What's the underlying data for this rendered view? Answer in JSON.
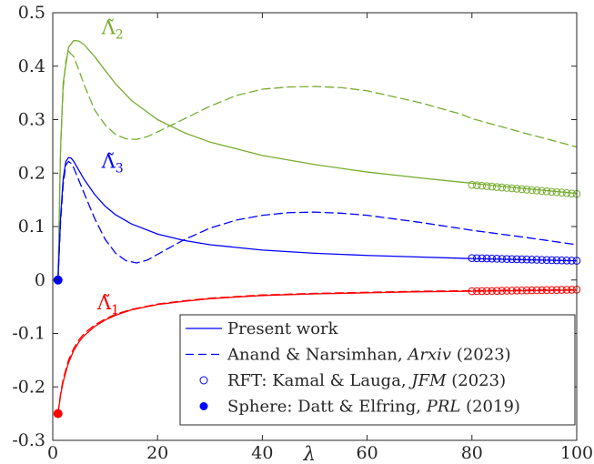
{
  "chart_data": {
    "type": "line",
    "xlabel": "λ",
    "ylabel": "",
    "xlim": [
      0,
      100
    ],
    "ylim": [
      -0.3,
      0.5
    ],
    "xticks": [
      "0",
      "20",
      "40",
      "60",
      "80",
      "100"
    ],
    "yticks": [
      "-0.3",
      "-0.2",
      "-0.1",
      "0",
      "0.1",
      "0.2",
      "0.3",
      "0.4",
      "0.5"
    ],
    "grid": false,
    "legend_position": "bottom-right",
    "colors": {
      "lambda1": "#ff0000",
      "lambda2": "#77ac30",
      "lambda3": "#0000ff",
      "legend": "#0000ff"
    },
    "annotations": [
      {
        "label": "Λ̃",
        "sub": "2",
        "x": 9.3,
        "y": 0.46,
        "color": "#77ac30"
      },
      {
        "label": "Λ̃",
        "sub": "3",
        "x": 9.3,
        "y": 0.21,
        "color": "#0000ff"
      },
      {
        "label": "Λ̃",
        "sub": "1",
        "x": 8.5,
        "y": -0.055,
        "color": "#ff0000"
      }
    ],
    "legend": [
      {
        "style": "solid",
        "label_plain": "Present work",
        "label_italic": "",
        "label_year": ""
      },
      {
        "style": "dashed",
        "label_plain": "Anand & Narsimhan, ",
        "label_italic": "Arxiv",
        "label_year": " (2023)"
      },
      {
        "style": "open-circle",
        "label_plain": "RFT: Kamal & Lauga, ",
        "label_italic": "JFM",
        "label_year": " (2023)"
      },
      {
        "style": "filled-circle",
        "label_plain": "Sphere: Datt & Elfring, ",
        "label_italic": "PRL",
        "label_year": " (2019)"
      }
    ],
    "series": [
      {
        "curve": "Λ̃2",
        "source": "Present work",
        "style": "solid",
        "color": "#77ac30",
        "x": [
          1,
          1.5,
          2,
          3,
          4,
          5,
          6,
          8,
          10,
          12,
          15,
          20,
          25,
          30,
          40,
          50,
          60,
          70,
          80,
          90,
          100
        ],
        "y": [
          0,
          0.25,
          0.37,
          0.435,
          0.448,
          0.447,
          0.44,
          0.418,
          0.392,
          0.367,
          0.336,
          0.3,
          0.276,
          0.258,
          0.233,
          0.216,
          0.202,
          0.191,
          0.181,
          0.171,
          0.162
        ]
      },
      {
        "curve": "Λ̃2",
        "source": "Anand & Narsimhan",
        "style": "dashed",
        "color": "#77ac30",
        "x": [
          1,
          1.5,
          2,
          2.5,
          3,
          4,
          5,
          6,
          8,
          10,
          12,
          14,
          16,
          18,
          20,
          25,
          30,
          35,
          40,
          45,
          50,
          55,
          60,
          70,
          78,
          80,
          90,
          100
        ],
        "y": [
          0,
          0.25,
          0.36,
          0.41,
          0.428,
          0.418,
          0.392,
          0.365,
          0.318,
          0.29,
          0.272,
          0.264,
          0.263,
          0.268,
          0.277,
          0.301,
          0.325,
          0.345,
          0.357,
          0.361,
          0.362,
          0.36,
          0.354,
          0.332,
          0.31,
          0.302,
          0.275,
          0.249
        ]
      },
      {
        "curve": "Λ̃3",
        "source": "Present work",
        "style": "solid",
        "color": "#0000ff",
        "x": [
          1,
          1.5,
          2,
          2.5,
          3,
          3.5,
          4,
          5,
          6,
          8,
          10,
          12,
          15,
          20,
          25,
          30,
          40,
          50,
          60,
          70,
          80,
          90,
          100
        ],
        "y": [
          0,
          0.12,
          0.19,
          0.222,
          0.229,
          0.228,
          0.222,
          0.205,
          0.188,
          0.16,
          0.138,
          0.122,
          0.105,
          0.086,
          0.074,
          0.066,
          0.056,
          0.05,
          0.046,
          0.043,
          0.04,
          0.038,
          0.036
        ]
      },
      {
        "curve": "Λ̃3",
        "source": "Anand & Narsimhan",
        "style": "dashed",
        "color": "#0000ff",
        "x": [
          1,
          1.5,
          2,
          2.5,
          3,
          3.5,
          4,
          5,
          6,
          8,
          10,
          12,
          14,
          16,
          18,
          20,
          25,
          30,
          35,
          40,
          45,
          50,
          55,
          60,
          70,
          80,
          90,
          100
        ],
        "y": [
          0,
          0.11,
          0.18,
          0.215,
          0.222,
          0.218,
          0.21,
          0.186,
          0.162,
          0.115,
          0.076,
          0.05,
          0.036,
          0.032,
          0.037,
          0.048,
          0.075,
          0.097,
          0.112,
          0.121,
          0.126,
          0.127,
          0.125,
          0.121,
          0.108,
          0.093,
          0.08,
          0.066
        ]
      },
      {
        "curve": "Λ̃1",
        "source": "Present work",
        "style": "solid",
        "color": "#ff0000",
        "x": [
          1,
          1.5,
          2,
          3,
          4,
          5,
          6,
          8,
          10,
          12,
          15,
          20,
          25,
          30,
          40,
          50,
          60,
          70,
          80,
          90,
          100
        ],
        "y": [
          -0.25,
          -0.215,
          -0.19,
          -0.155,
          -0.132,
          -0.116,
          -0.104,
          -0.087,
          -0.075,
          -0.066,
          -0.056,
          -0.046,
          -0.04,
          -0.035,
          -0.029,
          -0.026,
          -0.024,
          -0.022,
          -0.021,
          -0.02,
          -0.019
        ]
      },
      {
        "curve": "Λ̃1",
        "source": "Anand & Narsimhan",
        "style": "dashed",
        "color": "#ff0000",
        "x": [
          1,
          1.5,
          2,
          3,
          4,
          5,
          6,
          8,
          10,
          12,
          15,
          20,
          25,
          30,
          40,
          50,
          60,
          70,
          80,
          90,
          100
        ],
        "y": [
          -0.25,
          -0.212,
          -0.185,
          -0.15,
          -0.128,
          -0.112,
          -0.1,
          -0.084,
          -0.073,
          -0.064,
          -0.055,
          -0.045,
          -0.039,
          -0.034,
          -0.028,
          -0.025,
          -0.023,
          -0.021,
          -0.02,
          -0.019,
          -0.018
        ]
      }
    ],
    "rft_points": [
      {
        "curve": "Λ̃2",
        "color": "#77ac30",
        "x_start": 80,
        "x_end": 100,
        "count": 22,
        "y_start": 0.178,
        "y_end": 0.161
      },
      {
        "curve": "Λ̃3",
        "color": "#0000ff",
        "x_start": 80,
        "x_end": 100,
        "count": 22,
        "y_start": 0.041,
        "y_end": 0.036
      },
      {
        "curve": "Λ̃1",
        "color": "#ff0000",
        "x_start": 80,
        "x_end": 100,
        "count": 22,
        "y_start": -0.021,
        "y_end": -0.018
      }
    ],
    "sphere_points": [
      {
        "curve": "Λ̃3",
        "x": 1,
        "y": 0,
        "color": "#0000ff"
      },
      {
        "curve": "Λ̃1",
        "x": 1,
        "y": -0.25,
        "color": "#ff0000"
      }
    ]
  }
}
